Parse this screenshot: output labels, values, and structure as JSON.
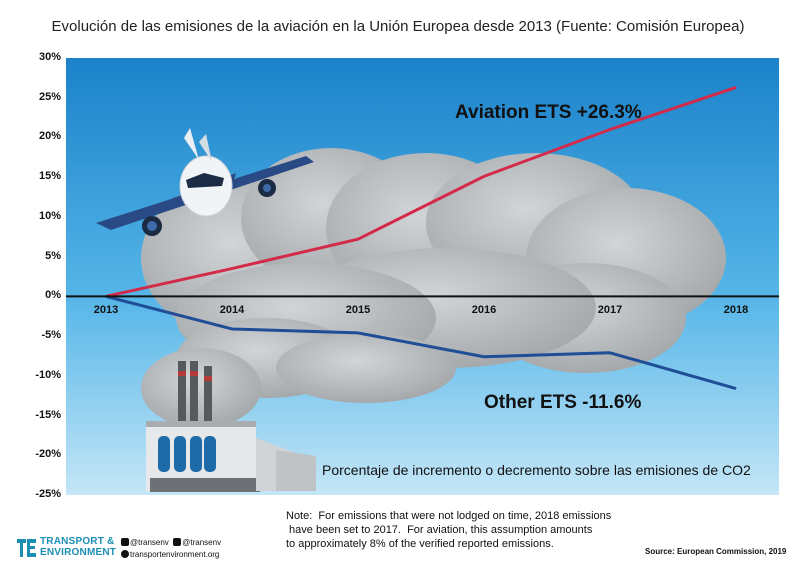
{
  "title": "Evolución de las emisiones de la aviación en la Unión Europea desde 2013 (Fuente: Comisión Europea)",
  "chart_data": {
    "type": "line",
    "title": "Evolución de las emisiones de la aviación en la Unión Europea desde 2013 (Fuente: Comisión Europea)",
    "x": [
      "2013",
      "2014",
      "2015",
      "2016",
      "2017",
      "2018"
    ],
    "y_ticks": [
      "30%",
      "25%",
      "20%",
      "15%",
      "10%",
      "5%",
      "0%",
      "-5%",
      "-10%",
      "-15%",
      "-20%",
      "-25%"
    ],
    "ylim": [
      -25,
      30
    ],
    "series": [
      {
        "name": "Aviation ETS +26.3%",
        "color": "#d42a4a",
        "values": [
          0,
          3.5,
          7.2,
          15.1,
          21.0,
          26.3
        ]
      },
      {
        "name": "Other ETS -11.6%",
        "color": "#1f4e96",
        "values": [
          0,
          -4.1,
          -4.6,
          -7.6,
          -7.1,
          -11.6
        ]
      }
    ],
    "caption": "Porcentaje de incremento o decremento sobre las emisiones de CO2",
    "grid": false
  },
  "note": "Note:  For emissions that were not lodged on time, 2018 emissions\n have been set to 2017.  For aviation, this assumption amounts\nto approximately 8% of the verified reported emissions.",
  "source": "Source: European Commission, 2019",
  "logo": {
    "line1": "TRANSPORT &",
    "line2": "ENVIRONMENT",
    "color": "#1a8fb3"
  },
  "social": {
    "twitter": "@transenv",
    "facebook": "@transenv",
    "web": "transportenvironment.org"
  },
  "colors": {
    "sky_top": "#1d85cc",
    "sky_bottom": "#bfe4f7",
    "cloud": "#b3b7ba",
    "axis": "#111111"
  }
}
